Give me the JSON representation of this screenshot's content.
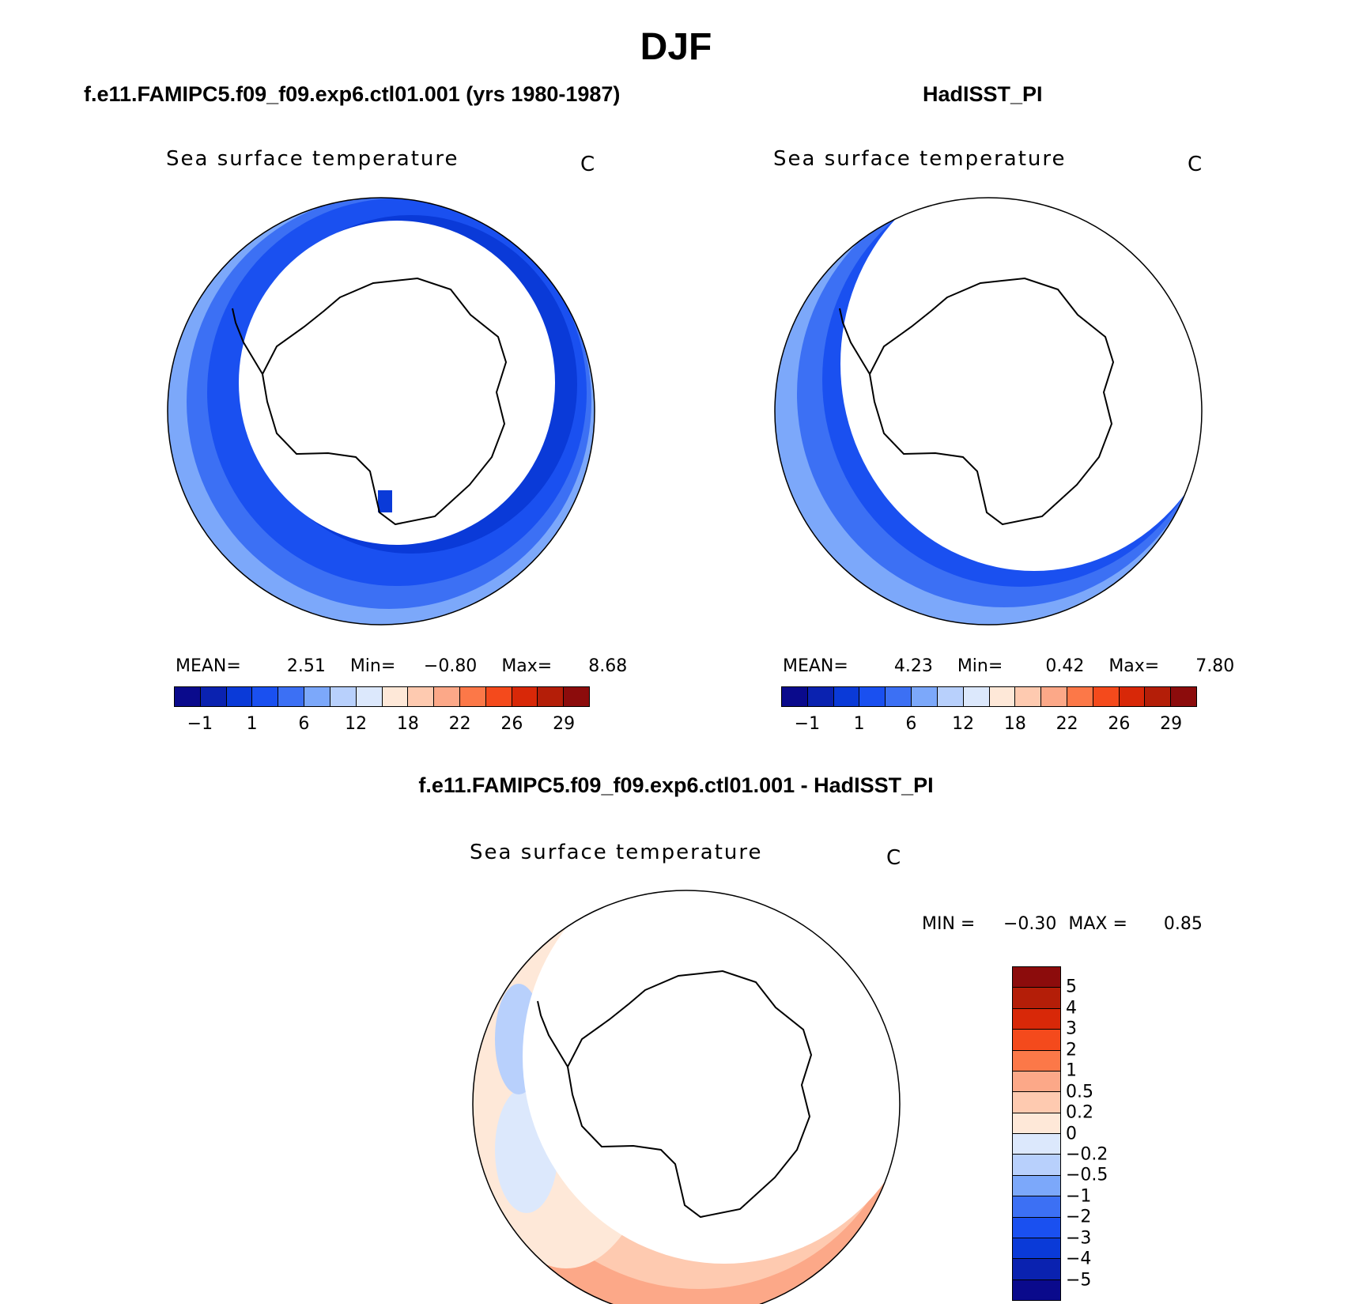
{
  "title": "DJF",
  "colors": {
    "abs_levels": [
      "#0a0a8c",
      "#0a22b0",
      "#0a3ad8",
      "#1a50f0",
      "#3c70f4",
      "#7ca8fa",
      "#b8d0fc",
      "#dce8fc",
      "#fee8d8",
      "#fecab0",
      "#fca888",
      "#fc7848",
      "#f44a1c",
      "#d82808",
      "#b41e08",
      "#8c0c0c"
    ],
    "diff_levels": [
      "#0a0a8c",
      "#0a22b0",
      "#0a3ad8",
      "#1a50f0",
      "#3c70f4",
      "#7ca8fa",
      "#b8d0fc",
      "#dce8fc",
      "#fee8d8",
      "#fecab0",
      "#fca888",
      "#fc7848",
      "#f44a1c",
      "#d82808",
      "#b41e08",
      "#8c0c0c"
    ]
  },
  "panels": [
    {
      "title": "f.e11.FAMIPC5.f09_f09.exp6.ctl01.001 (yrs 1980-1987)",
      "variable": "Sea surface temperature",
      "units": "C",
      "stats": {
        "mean_label": "MEAN=",
        "mean": "2.51",
        "min_label": "Min=",
        "min": "−0.80",
        "max_label": "Max=",
        "max": "8.68"
      },
      "colorbar_ticks": [
        "−1",
        "1",
        "6",
        "12",
        "18",
        "22",
        "26",
        "29"
      ]
    },
    {
      "title": "HadISST_PI",
      "variable": "Sea surface temperature",
      "units": "C",
      "stats": {
        "mean_label": "MEAN=",
        "mean": "4.23",
        "min_label": "Min=",
        "min": "0.42",
        "max_label": "Max=",
        "max": "7.80"
      },
      "colorbar_ticks": [
        "−1",
        "1",
        "6",
        "12",
        "18",
        "22",
        "26",
        "29"
      ]
    },
    {
      "title": "f.e11.FAMIPC5.f09_f09.exp6.ctl01.001 - HadISST_PI",
      "variable": "Sea surface temperature",
      "units": "C",
      "stats": {
        "min_label": "MIN =",
        "min": "−0.30",
        "max_label": "MAX =",
        "max": "0.85"
      },
      "colorbar_ticks": [
        "−5",
        "−4",
        "−3",
        "−2",
        "−1",
        "−0.5",
        "−0.2",
        "0",
        "0.2",
        "0.5",
        "1",
        "2",
        "3",
        "4",
        "5"
      ]
    }
  ],
  "chart_data": [
    {
      "type": "heatmap",
      "title": "f.e11.FAMIPC5.f09_f09.exp6.ctl01.001 (yrs 1980-1987)",
      "projection": "south polar stereographic",
      "variable": "Sea surface temperature",
      "units": "C",
      "mean": 2.51,
      "min": -0.8,
      "max": 8.68,
      "colorbar_levels": [
        -1,
        1,
        6,
        12,
        18,
        22,
        26,
        29
      ]
    },
    {
      "type": "heatmap",
      "title": "HadISST_PI",
      "projection": "south polar stereographic",
      "variable": "Sea surface temperature",
      "units": "C",
      "mean": 4.23,
      "min": 0.42,
      "max": 7.8,
      "colorbar_levels": [
        -1,
        1,
        6,
        12,
        18,
        22,
        26,
        29
      ]
    },
    {
      "type": "heatmap",
      "title": "f.e11.FAMIPC5.f09_f09.exp6.ctl01.001 - HadISST_PI",
      "projection": "south polar stereographic",
      "variable": "Sea surface temperature",
      "units": "C",
      "min": -0.3,
      "max": 0.85,
      "colorbar_levels": [
        -5,
        -4,
        -3,
        -2,
        -1,
        -0.5,
        -0.2,
        0,
        0.2,
        0.5,
        1,
        2,
        3,
        4,
        5
      ]
    }
  ]
}
